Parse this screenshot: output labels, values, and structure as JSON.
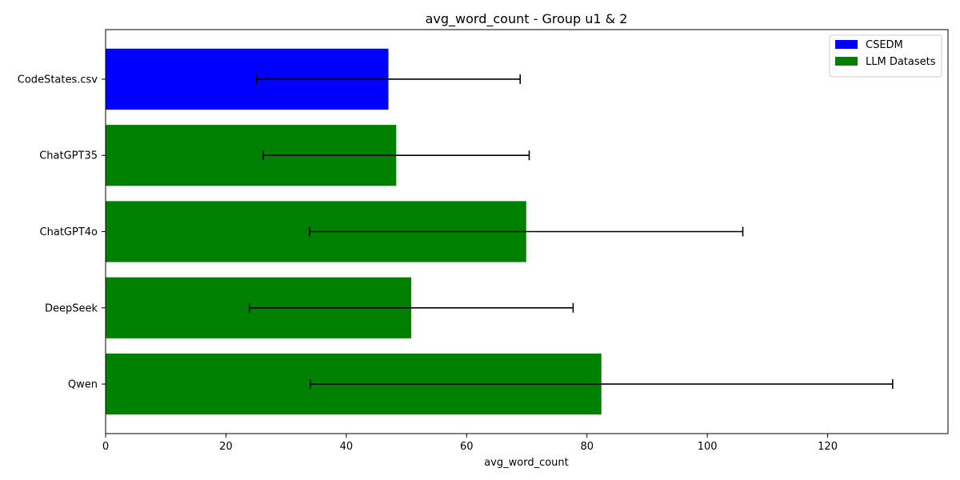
{
  "chart_data": {
    "type": "bar",
    "orientation": "horizontal",
    "title": "avg_word_count - Group u1 & 2",
    "xlabel": "avg_word_count",
    "ylabel": "",
    "xlim": [
      0,
      140
    ],
    "xticks": [
      0,
      20,
      40,
      60,
      80,
      100,
      120
    ],
    "categories": [
      "CodeStates.csv",
      "ChatGPT35",
      "ChatGPT4o",
      "DeepSeek",
      "Qwen"
    ],
    "values": [
      47.0,
      48.3,
      69.9,
      50.8,
      82.4
    ],
    "errors": [
      21.9,
      22.1,
      36.0,
      26.9,
      48.4
    ],
    "bar_groups": [
      "CSEDM",
      "LLM Datasets",
      "LLM Datasets",
      "LLM Datasets",
      "LLM Datasets"
    ],
    "legend": {
      "placement": "top-right",
      "entries": [
        {
          "label": "CSEDM",
          "color": "#0000ff"
        },
        {
          "label": "LLM Datasets",
          "color": "#008000"
        }
      ]
    },
    "grid": false
  }
}
